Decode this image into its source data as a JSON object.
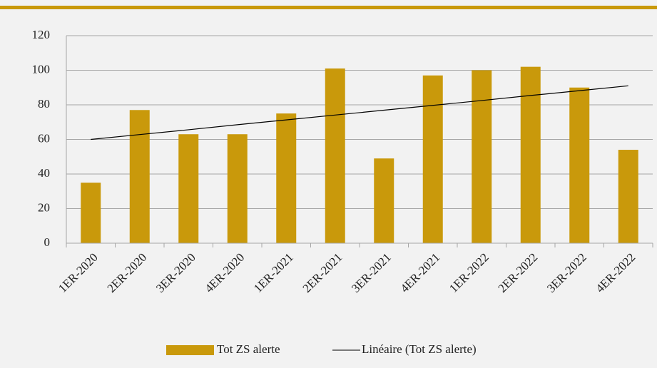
{
  "chart_data": {
    "type": "bar",
    "categories": [
      "1ER-2020",
      "2ER-2020",
      "3ER-2020",
      "4ER-2020",
      "1ER-2021",
      "2ER-2021",
      "3ER-2021",
      "4ER-2021",
      "1ER-2022",
      "2ER-2022",
      "3ER-2022",
      "4ER-2022"
    ],
    "series": [
      {
        "name": "Tot ZS alerte",
        "type": "bar",
        "color": "#c9990b",
        "values": [
          35,
          77,
          63,
          63,
          75,
          101,
          49,
          97,
          100,
          102,
          90,
          54
        ]
      },
      {
        "name": "Linéaire (Tot ZS alerte)",
        "type": "line",
        "color": "#000000",
        "values": [
          60,
          62.8,
          65.6,
          68.5,
          71.3,
          74.1,
          76.9,
          79.7,
          82.5,
          85.4,
          88.2,
          91
        ]
      }
    ],
    "ylim": [
      0,
      120
    ],
    "yticks": [
      0,
      20,
      40,
      60,
      80,
      100,
      120
    ],
    "grid": true,
    "legend": "bottom"
  }
}
